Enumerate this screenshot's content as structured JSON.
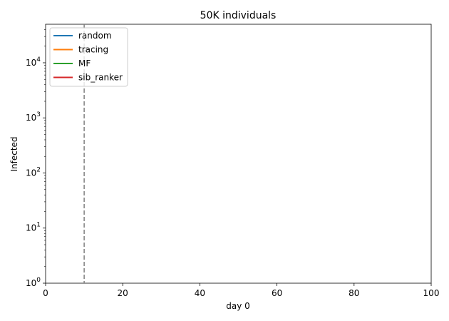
{
  "chart_data": {
    "type": "line",
    "title": "50K individuals",
    "xlabel": "day 0",
    "ylabel": "Infected",
    "xlim": [
      0,
      100
    ],
    "ylim": [
      1,
      50000
    ],
    "yscale": "log",
    "x_ticks": [
      0,
      20,
      40,
      60,
      80,
      100
    ],
    "x_tick_labels": [
      "0",
      "20",
      "40",
      "60",
      "80",
      "100"
    ],
    "y_ticks": [
      1,
      10,
      100,
      1000,
      10000
    ],
    "y_tick_labels": [
      {
        "base": "10",
        "exp": "0"
      },
      {
        "base": "10",
        "exp": "1"
      },
      {
        "base": "10",
        "exp": "2"
      },
      {
        "base": "10",
        "exp": "3"
      },
      {
        "base": "10",
        "exp": "4"
      }
    ],
    "vline": {
      "x": 10,
      "color": "#7f7f7f",
      "style": "dashed"
    },
    "legend_position": "top-left",
    "series": [
      {
        "name": "random",
        "color": "#1f77b4",
        "x": [],
        "y": []
      },
      {
        "name": "tracing",
        "color": "#ff7f0e",
        "x": [],
        "y": []
      },
      {
        "name": "MF",
        "color": "#2ca02c",
        "x": [],
        "y": []
      },
      {
        "name": "sib_ranker",
        "color": "#d62728",
        "x": [],
        "y": []
      }
    ]
  }
}
